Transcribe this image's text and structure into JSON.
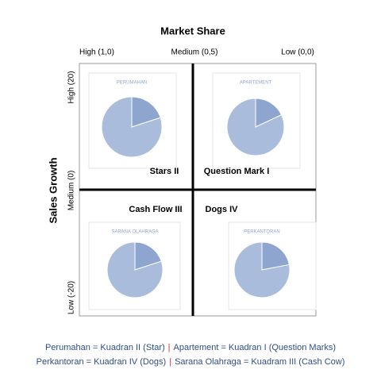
{
  "title": "Market Share",
  "x_labels": [
    "High (1,0)",
    "Medium (0,5)",
    "Low (0,0)"
  ],
  "y_title": "Sales Growth",
  "y_labels": [
    "High (20)",
    "Medium (0)",
    "Low (-20)"
  ],
  "quadrants": [
    {
      "label": "Stars II",
      "pie": {
        "label": "PERUMAHAN",
        "values": [
          20,
          80
        ]
      }
    },
    {
      "label": "Question Mark I",
      "pie": {
        "label": "APARTEMENT",
        "values": [
          18,
          82
        ]
      }
    },
    {
      "label": "Cash Flow III",
      "pie": {
        "label": "SARANA OLAHRAGA",
        "values": [
          20,
          80
        ]
      }
    },
    {
      "label": "Dogs IV",
      "pie": {
        "label": "PERKANTORAN",
        "values": [
          22,
          78
        ]
      }
    }
  ],
  "pie_colors": [
    "#8ea6cf",
    "#a9bcdc"
  ],
  "legend": [
    [
      "Perumahan = Kuadran II (Star)",
      "|",
      "Apartement = Kuadran I (Question Marks)"
    ],
    [
      "Perkantoran = Kuadran IV (Dogs)",
      "|",
      "Sarana Olahraga = Kuadram III (Cash Cow)"
    ]
  ]
}
